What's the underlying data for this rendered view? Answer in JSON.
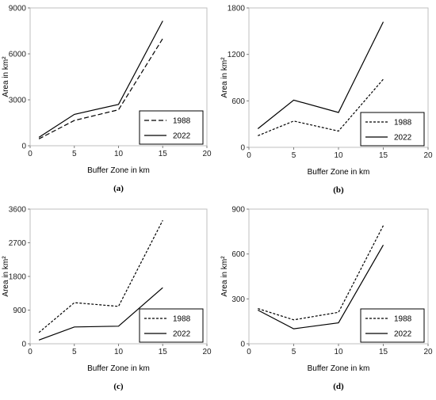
{
  "chart_data": [
    {
      "panel": "(a)",
      "type": "line",
      "xlabel": "Buffer Zone in km",
      "ylabel": "Area in km²",
      "xlim": [
        0,
        20
      ],
      "ylim": [
        0,
        9000
      ],
      "xticks": [
        0,
        5,
        10,
        15,
        20
      ],
      "yticks": [
        0,
        3000,
        6000,
        9000
      ],
      "x": [
        1,
        5,
        10,
        15
      ],
      "legend_position": "lower-right",
      "series": [
        {
          "name": "1988",
          "style": "dashed",
          "values": [
            450,
            1650,
            2350,
            7000
          ]
        },
        {
          "name": "2022",
          "style": "solid",
          "values": [
            550,
            2050,
            2700,
            8150
          ]
        }
      ]
    },
    {
      "panel": "(b)",
      "type": "line",
      "xlabel": "Buffer Zone in km",
      "ylabel": "Area in km²",
      "xlim": [
        0,
        20
      ],
      "ylim": [
        0,
        1800
      ],
      "xticks": [
        0,
        5,
        10,
        15,
        20
      ],
      "yticks": [
        0,
        600,
        1200,
        1800
      ],
      "x": [
        1,
        5,
        10,
        15
      ],
      "legend_position": "lower-right",
      "series": [
        {
          "name": "1988",
          "style": "dashed",
          "values": [
            150,
            340,
            210,
            880
          ]
        },
        {
          "name": "2022",
          "style": "solid",
          "values": [
            240,
            610,
            450,
            1620
          ]
        }
      ]
    },
    {
      "panel": "(c)",
      "type": "line",
      "xlabel": "Buffer Zone in km",
      "ylabel": "Area in km²",
      "xlim": [
        0,
        20
      ],
      "ylim": [
        0,
        3600
      ],
      "xticks": [
        0,
        5,
        10,
        15,
        20
      ],
      "yticks": [
        0,
        900,
        1800,
        2700,
        3600
      ],
      "x": [
        1,
        5,
        10,
        15
      ],
      "legend_position": "lower-right",
      "series": [
        {
          "name": "1988",
          "style": "dashed",
          "values": [
            300,
            1100,
            1000,
            3300
          ]
        },
        {
          "name": "2022",
          "style": "solid",
          "values": [
            100,
            450,
            470,
            1500
          ]
        }
      ]
    },
    {
      "panel": "(d)",
      "type": "line",
      "xlabel": "Buffer Zone in km",
      "ylabel": "Area in km²",
      "xlim": [
        0,
        20
      ],
      "ylim": [
        0,
        900
      ],
      "xticks": [
        0,
        5,
        10,
        15,
        20
      ],
      "yticks": [
        0,
        300,
        600,
        900
      ],
      "x": [
        1,
        5,
        10,
        15
      ],
      "legend_position": "lower-right",
      "series": [
        {
          "name": "1988",
          "style": "dashed",
          "values": [
            235,
            160,
            210,
            790
          ]
        },
        {
          "name": "2022",
          "style": "solid",
          "values": [
            225,
            100,
            140,
            660
          ]
        }
      ]
    }
  ]
}
